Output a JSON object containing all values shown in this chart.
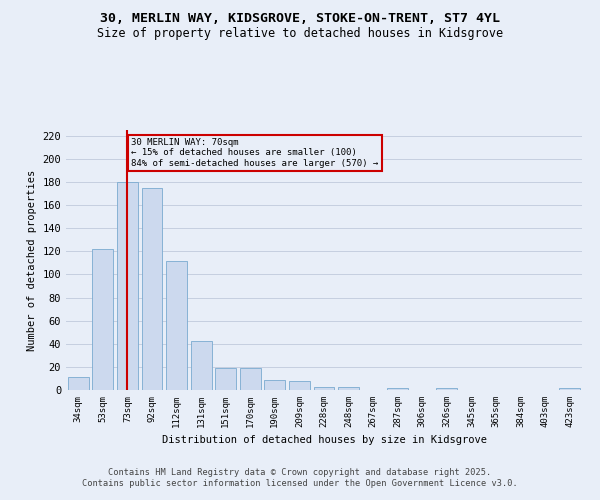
{
  "title": "30, MERLIN WAY, KIDSGROVE, STOKE-ON-TRENT, ST7 4YL",
  "subtitle": "Size of property relative to detached houses in Kidsgrove",
  "xlabel": "Distribution of detached houses by size in Kidsgrove",
  "ylabel": "Number of detached properties",
  "categories": [
    "34sqm",
    "53sqm",
    "73sqm",
    "92sqm",
    "112sqm",
    "131sqm",
    "151sqm",
    "170sqm",
    "190sqm",
    "209sqm",
    "228sqm",
    "248sqm",
    "267sqm",
    "287sqm",
    "306sqm",
    "326sqm",
    "345sqm",
    "365sqm",
    "384sqm",
    "403sqm",
    "423sqm"
  ],
  "values": [
    11,
    122,
    180,
    175,
    112,
    42,
    19,
    19,
    9,
    8,
    3,
    3,
    0,
    2,
    0,
    2,
    0,
    0,
    0,
    0,
    2
  ],
  "bar_color": "#ccd9ee",
  "bar_edge_color": "#7aaad0",
  "grid_color": "#c5cfe0",
  "background_color": "#e8eef8",
  "vline_x": 2,
  "vline_color": "#cc0000",
  "annotation_text": "30 MERLIN WAY: 70sqm\n← 15% of detached houses are smaller (100)\n84% of semi-detached houses are larger (570) →",
  "annotation_box_color": "#cc0000",
  "ylim": [
    0,
    225
  ],
  "yticks": [
    0,
    20,
    40,
    60,
    80,
    100,
    120,
    140,
    160,
    180,
    200,
    220
  ],
  "footer": "Contains HM Land Registry data © Crown copyright and database right 2025.\nContains public sector information licensed under the Open Government Licence v3.0.",
  "title_fontsize": 9.5,
  "subtitle_fontsize": 8.5
}
